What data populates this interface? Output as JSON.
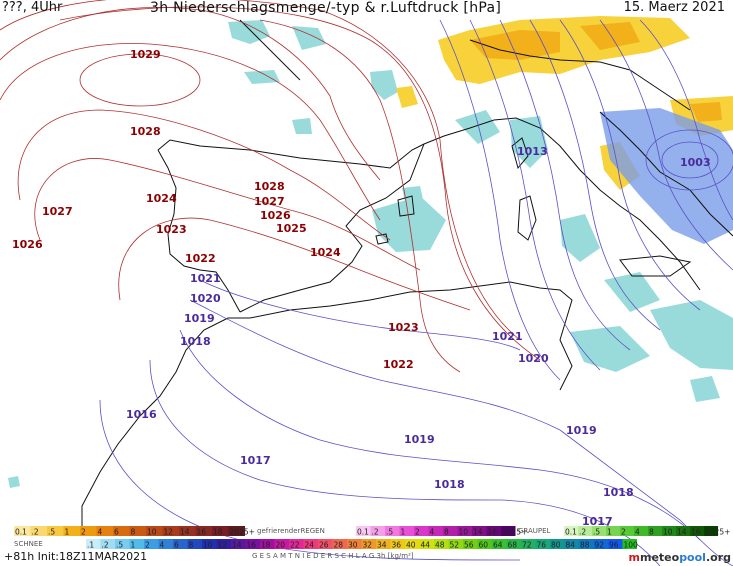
{
  "header": {
    "left": "???, 4Uhr",
    "title": "3h Niederschlagsmenge/-typ & r.Luftdruck [hPa]",
    "date": "15. Maerz 2021"
  },
  "colors": {
    "land": "#ffffff",
    "isobar_high": "#b03030",
    "isobar_low": "#5a50c8",
    "coast": "#111111",
    "precip_snow": "#8ed6d8",
    "precip_rain_light": "#f7d23a",
    "precip_rain": "#f2b01a",
    "precip_blue": "#7a9ee8"
  },
  "isobar_labels": [
    {
      "text": "1029",
      "kind": "high"
    },
    {
      "text": "1028",
      "kind": "high"
    },
    {
      "text": "1027",
      "kind": "high"
    },
    {
      "text": "1026",
      "kind": "high"
    },
    {
      "text": "1024",
      "kind": "high"
    },
    {
      "text": "1023",
      "kind": "high"
    },
    {
      "text": "1022",
      "kind": "high"
    },
    {
      "text": "1028",
      "kind": "high"
    },
    {
      "text": "1027",
      "kind": "high"
    },
    {
      "text": "1026",
      "kind": "high"
    },
    {
      "text": "1025",
      "kind": "high"
    },
    {
      "text": "1024",
      "kind": "high"
    },
    {
      "text": "1023",
      "kind": "high"
    },
    {
      "text": "1022",
      "kind": "high"
    },
    {
      "text": "1021",
      "kind": "low"
    },
    {
      "text": "1020",
      "kind": "low"
    },
    {
      "text": "1019",
      "kind": "low"
    },
    {
      "text": "1018",
      "kind": "low"
    },
    {
      "text": "1016",
      "kind": "low"
    },
    {
      "text": "1017",
      "kind": "low"
    },
    {
      "text": "1019",
      "kind": "low"
    },
    {
      "text": "1018",
      "kind": "low"
    },
    {
      "text": "1021",
      "kind": "low"
    },
    {
      "text": "1020",
      "kind": "low"
    },
    {
      "text": "1019",
      "kind": "low"
    },
    {
      "text": "1018",
      "kind": "low"
    },
    {
      "text": "1017",
      "kind": "low"
    },
    {
      "text": "1013",
      "kind": "low"
    },
    {
      "text": "1003",
      "kind": "low"
    }
  ],
  "legend": {
    "row1_a_values": [
      "0.1",
      ".2",
      ".5",
      "1",
      "2",
      "4",
      "6",
      "8",
      "10",
      "12",
      "14",
      "16",
      "18",
      "2025+"
    ],
    "row1_b_title": "gefrierenderREGEN",
    "row1_b_values": [
      "0.1",
      ".2",
      ".5",
      "1",
      "2",
      "4",
      "8",
      "10",
      "14",
      "16",
      "2025+"
    ],
    "row1_c_title": "GRAUPEL",
    "row1_c_values": [
      "0.1",
      ".2",
      ".5",
      "1",
      "2",
      "4",
      "8",
      "10",
      "14",
      "16",
      "2025+"
    ],
    "snow_label": "SCHNEE",
    "row2_values": [
      ".1",
      ".2",
      ".5",
      "1",
      "2",
      "4",
      "6",
      "8",
      "10",
      "12",
      "14",
      "16",
      "18",
      "20",
      "22",
      "24",
      "26",
      "28",
      "30",
      "32",
      "34",
      "36",
      "40",
      "44",
      "48",
      "52",
      "56",
      "60",
      "64",
      "68",
      "72",
      "76",
      "80",
      "84",
      "88",
      "92",
      "96",
      "100"
    ],
    "caption": "G E S A M T N I E D E R S C H L A G   3h  [kg/m²]"
  },
  "footer": {
    "init": "+81h  Init:18Z11MAR2021",
    "logo_m": "m",
    "logo_p": "meteo",
    "logo_o": "pool",
    "logo_s": ".org"
  }
}
